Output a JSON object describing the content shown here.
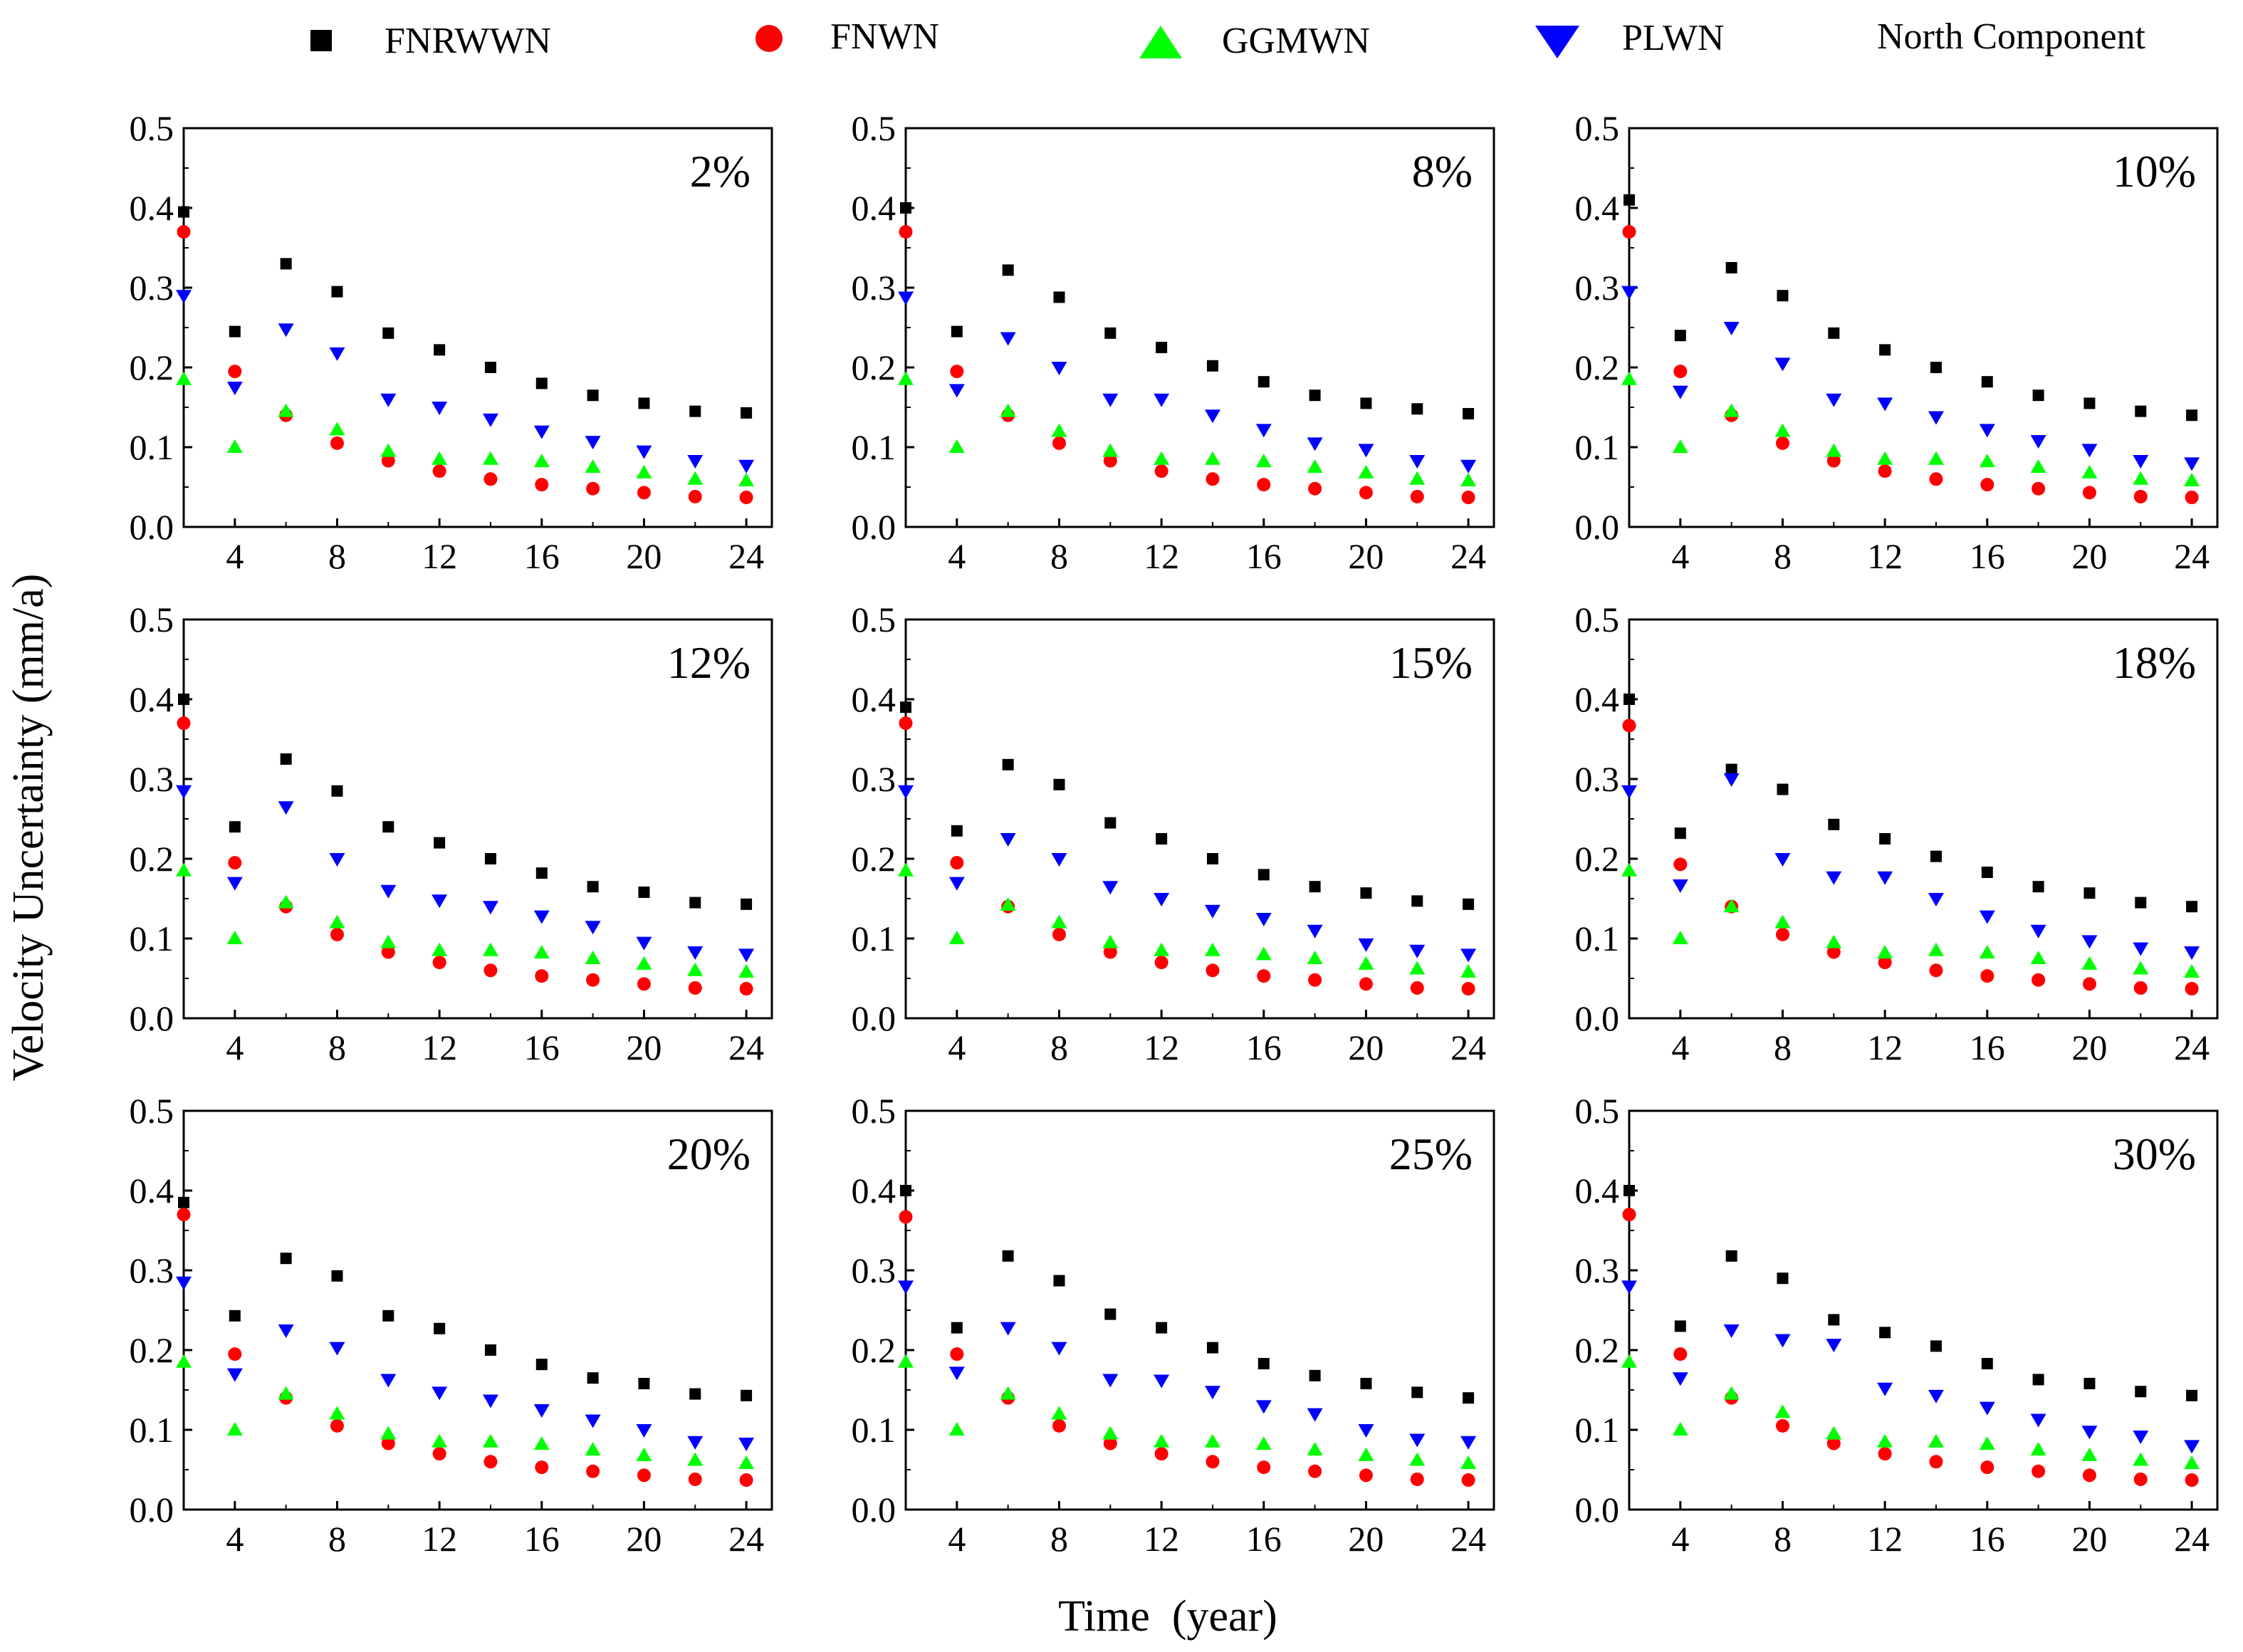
{
  "legend": {
    "title": "North Component",
    "entries": [
      {
        "name": "FNRWWN",
        "marker": "square",
        "color": "#000000"
      },
      {
        "name": "FNWN",
        "marker": "circle",
        "color": "#ff0000"
      },
      {
        "name": "GGMWN",
        "marker": "triangle-up",
        "color": "#00ff00"
      },
      {
        "name": "PLWN",
        "marker": "triangle-down",
        "color": "#0000ff"
      }
    ]
  },
  "axes": {
    "xlabel": "Time  (year)",
    "ylabel": "Velocity Uncertainty (mm/a)",
    "xlim": [
      2,
      25
    ],
    "ylim": [
      0,
      0.5
    ],
    "xticks": [
      4,
      8,
      12,
      16,
      20,
      24
    ],
    "yticks": [
      "0.0",
      "0.1",
      "0.2",
      "0.3",
      "0.4",
      "0.5"
    ]
  },
  "chart_data": [
    {
      "type": "scatter",
      "label": "2%",
      "x": [
        2,
        4,
        6,
        8,
        10,
        12,
        14,
        16,
        18,
        20,
        22,
        24
      ],
      "series": [
        {
          "name": "FNRWWN",
          "values": [
            0.395,
            0.245,
            0.33,
            0.295,
            0.243,
            0.222,
            0.2,
            0.18,
            0.165,
            0.155,
            0.145,
            0.143
          ]
        },
        {
          "name": "FNWN",
          "values": [
            0.37,
            0.195,
            0.14,
            0.105,
            0.083,
            0.07,
            0.06,
            0.053,
            0.048,
            0.043,
            0.038,
            0.037
          ]
        },
        {
          "name": "GGMWN",
          "values": [
            0.185,
            0.1,
            0.145,
            0.122,
            0.095,
            0.085,
            0.085,
            0.082,
            0.075,
            0.068,
            0.06,
            0.058
          ]
        },
        {
          "name": "PLWN",
          "values": [
            0.29,
            0.175,
            0.248,
            0.218,
            0.16,
            0.15,
            0.135,
            0.12,
            0.107,
            0.095,
            0.083,
            0.077
          ]
        }
      ]
    },
    {
      "type": "scatter",
      "label": "8%",
      "x": [
        2,
        4,
        6,
        8,
        10,
        12,
        14,
        16,
        18,
        20,
        22,
        24
      ],
      "series": [
        {
          "name": "FNRWWN",
          "values": [
            0.4,
            0.245,
            0.322,
            0.288,
            0.243,
            0.225,
            0.202,
            0.182,
            0.165,
            0.155,
            0.148,
            0.142
          ]
        },
        {
          "name": "FNWN",
          "values": [
            0.37,
            0.195,
            0.14,
            0.105,
            0.083,
            0.07,
            0.06,
            0.053,
            0.048,
            0.043,
            0.038,
            0.037
          ]
        },
        {
          "name": "GGMWN",
          "values": [
            0.185,
            0.1,
            0.145,
            0.12,
            0.095,
            0.085,
            0.085,
            0.082,
            0.075,
            0.068,
            0.06,
            0.058
          ]
        },
        {
          "name": "PLWN",
          "values": [
            0.288,
            0.172,
            0.237,
            0.2,
            0.16,
            0.16,
            0.14,
            0.122,
            0.105,
            0.097,
            0.083,
            0.077
          ]
        }
      ]
    },
    {
      "type": "scatter",
      "label": "10%",
      "x": [
        2,
        4,
        6,
        8,
        10,
        12,
        14,
        16,
        18,
        20,
        22,
        24
      ],
      "series": [
        {
          "name": "FNRWWN",
          "values": [
            0.41,
            0.24,
            0.325,
            0.29,
            0.243,
            0.222,
            0.2,
            0.182,
            0.165,
            0.155,
            0.145,
            0.14
          ]
        },
        {
          "name": "FNWN",
          "values": [
            0.37,
            0.195,
            0.14,
            0.105,
            0.083,
            0.07,
            0.06,
            0.053,
            0.048,
            0.043,
            0.038,
            0.037
          ]
        },
        {
          "name": "GGMWN",
          "values": [
            0.185,
            0.1,
            0.145,
            0.12,
            0.095,
            0.085,
            0.085,
            0.082,
            0.075,
            0.068,
            0.06,
            0.058
          ]
        },
        {
          "name": "PLWN",
          "values": [
            0.295,
            0.17,
            0.25,
            0.205,
            0.16,
            0.155,
            0.138,
            0.122,
            0.108,
            0.097,
            0.083,
            0.08
          ]
        }
      ]
    },
    {
      "type": "scatter",
      "label": "12%",
      "x": [
        2,
        4,
        6,
        8,
        10,
        12,
        14,
        16,
        18,
        20,
        22,
        24
      ],
      "series": [
        {
          "name": "FNRWWN",
          "values": [
            0.4,
            0.24,
            0.325,
            0.285,
            0.24,
            0.22,
            0.2,
            0.182,
            0.165,
            0.158,
            0.145,
            0.143
          ]
        },
        {
          "name": "FNWN",
          "values": [
            0.37,
            0.195,
            0.14,
            0.105,
            0.083,
            0.07,
            0.06,
            0.053,
            0.048,
            0.043,
            0.038,
            0.037
          ]
        },
        {
          "name": "GGMWN",
          "values": [
            0.185,
            0.1,
            0.145,
            0.12,
            0.095,
            0.085,
            0.085,
            0.082,
            0.075,
            0.068,
            0.06,
            0.058
          ]
        },
        {
          "name": "PLWN",
          "values": [
            0.285,
            0.17,
            0.265,
            0.2,
            0.16,
            0.148,
            0.14,
            0.128,
            0.115,
            0.095,
            0.083,
            0.08
          ]
        }
      ]
    },
    {
      "type": "scatter",
      "label": "15%",
      "x": [
        2,
        4,
        6,
        8,
        10,
        12,
        14,
        16,
        18,
        20,
        22,
        24
      ],
      "series": [
        {
          "name": "FNRWWN",
          "values": [
            0.39,
            0.235,
            0.318,
            0.293,
            0.245,
            0.225,
            0.2,
            0.18,
            0.165,
            0.157,
            0.147,
            0.143
          ]
        },
        {
          "name": "FNWN",
          "values": [
            0.37,
            0.195,
            0.14,
            0.105,
            0.083,
            0.07,
            0.06,
            0.053,
            0.048,
            0.043,
            0.038,
            0.037
          ]
        },
        {
          "name": "GGMWN",
          "values": [
            0.185,
            0.1,
            0.142,
            0.12,
            0.095,
            0.085,
            0.085,
            0.08,
            0.075,
            0.068,
            0.062,
            0.058
          ]
        },
        {
          "name": "PLWN",
          "values": [
            0.285,
            0.17,
            0.225,
            0.2,
            0.165,
            0.15,
            0.135,
            0.125,
            0.11,
            0.093,
            0.085,
            0.08
          ]
        }
      ]
    },
    {
      "type": "scatter",
      "label": "18%",
      "x": [
        2,
        4,
        6,
        8,
        10,
        12,
        14,
        16,
        18,
        20,
        22,
        24
      ],
      "series": [
        {
          "name": "FNRWWN",
          "values": [
            0.4,
            0.232,
            0.312,
            0.287,
            0.243,
            0.225,
            0.203,
            0.183,
            0.165,
            0.157,
            0.145,
            0.14
          ]
        },
        {
          "name": "FNWN",
          "values": [
            0.367,
            0.193,
            0.14,
            0.105,
            0.083,
            0.07,
            0.06,
            0.053,
            0.048,
            0.043,
            0.038,
            0.037
          ]
        },
        {
          "name": "GGMWN",
          "values": [
            0.185,
            0.1,
            0.14,
            0.12,
            0.095,
            0.082,
            0.085,
            0.082,
            0.075,
            0.068,
            0.062,
            0.058
          ]
        },
        {
          "name": "PLWN",
          "values": [
            0.285,
            0.167,
            0.3,
            0.2,
            0.177,
            0.177,
            0.15,
            0.128,
            0.11,
            0.097,
            0.088,
            0.083
          ]
        }
      ]
    },
    {
      "type": "scatter",
      "label": "20%",
      "x": [
        2,
        4,
        6,
        8,
        10,
        12,
        14,
        16,
        18,
        20,
        22,
        24
      ],
      "series": [
        {
          "name": "FNRWWN",
          "values": [
            0.385,
            0.243,
            0.315,
            0.293,
            0.243,
            0.227,
            0.2,
            0.182,
            0.165,
            0.158,
            0.145,
            0.143
          ]
        },
        {
          "name": "FNWN",
          "values": [
            0.37,
            0.195,
            0.14,
            0.105,
            0.083,
            0.07,
            0.06,
            0.053,
            0.048,
            0.043,
            0.038,
            0.037
          ]
        },
        {
          "name": "GGMWN",
          "values": [
            0.185,
            0.1,
            0.145,
            0.12,
            0.095,
            0.085,
            0.085,
            0.082,
            0.075,
            0.068,
            0.062,
            0.058
          ]
        },
        {
          "name": "PLWN",
          "values": [
            0.285,
            0.17,
            0.225,
            0.203,
            0.163,
            0.147,
            0.137,
            0.125,
            0.112,
            0.1,
            0.085,
            0.083
          ]
        }
      ]
    },
    {
      "type": "scatter",
      "label": "25%",
      "x": [
        2,
        4,
        6,
        8,
        10,
        12,
        14,
        16,
        18,
        20,
        22,
        24
      ],
      "series": [
        {
          "name": "FNRWWN",
          "values": [
            0.4,
            0.228,
            0.318,
            0.287,
            0.245,
            0.228,
            0.203,
            0.183,
            0.168,
            0.158,
            0.147,
            0.14
          ]
        },
        {
          "name": "FNWN",
          "values": [
            0.367,
            0.195,
            0.14,
            0.105,
            0.083,
            0.07,
            0.06,
            0.053,
            0.048,
            0.043,
            0.038,
            0.037
          ]
        },
        {
          "name": "GGMWN",
          "values": [
            0.185,
            0.1,
            0.145,
            0.12,
            0.095,
            0.085,
            0.085,
            0.082,
            0.075,
            0.068,
            0.062,
            0.058
          ]
        },
        {
          "name": "PLWN",
          "values": [
            0.28,
            0.172,
            0.228,
            0.203,
            0.163,
            0.162,
            0.148,
            0.13,
            0.12,
            0.1,
            0.088,
            0.085
          ]
        }
      ]
    },
    {
      "type": "scatter",
      "label": "30%",
      "x": [
        2,
        4,
        6,
        8,
        10,
        12,
        14,
        16,
        18,
        20,
        22,
        24
      ],
      "series": [
        {
          "name": "FNRWWN",
          "values": [
            0.4,
            0.23,
            0.318,
            0.29,
            0.238,
            0.222,
            0.205,
            0.183,
            0.163,
            0.158,
            0.148,
            0.143
          ]
        },
        {
          "name": "FNWN",
          "values": [
            0.37,
            0.195,
            0.14,
            0.105,
            0.083,
            0.07,
            0.06,
            0.053,
            0.048,
            0.043,
            0.038,
            0.037
          ]
        },
        {
          "name": "GGMWN",
          "values": [
            0.185,
            0.1,
            0.145,
            0.122,
            0.095,
            0.085,
            0.085,
            0.082,
            0.075,
            0.068,
            0.062,
            0.058
          ]
        },
        {
          "name": "PLWN",
          "values": [
            0.28,
            0.165,
            0.225,
            0.213,
            0.207,
            0.152,
            0.143,
            0.128,
            0.113,
            0.098,
            0.092,
            0.08
          ]
        }
      ]
    }
  ]
}
